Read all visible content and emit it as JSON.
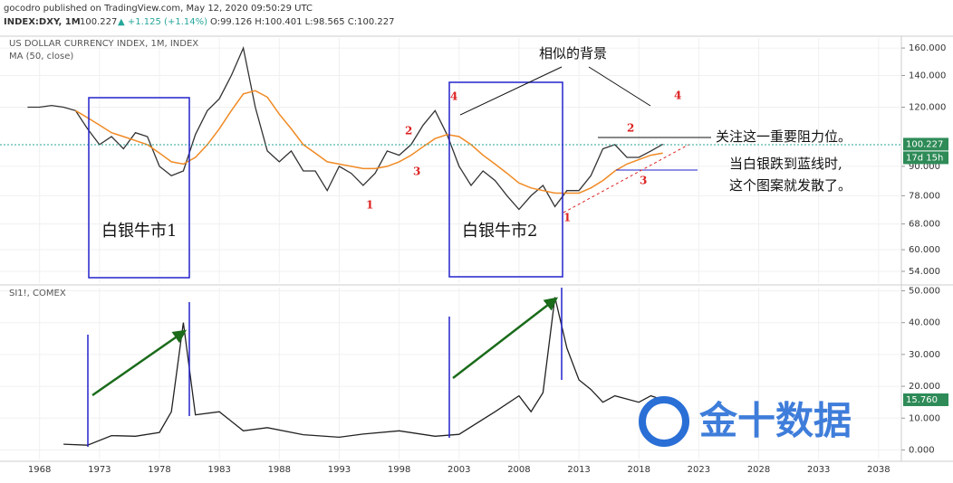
{
  "header": {
    "publisher": "gocodro published on TradingView.com, May 12, 2020 09:50:29 UTC",
    "symbol": "INDEX:DXY, 1M",
    "last": "100.227",
    "change": "▲ +1.125 (+1.14%)",
    "ohlc": "O:99.126 H:100.401 L:98.565 C:100.227"
  },
  "annotations": {
    "similar": "相似的背景",
    "resistance": "关注这一重要阻力位。",
    "note1": "当白银跌到蓝线时,",
    "note2": "这个图案就发散了。",
    "bull1": "白银牛市1",
    "bull2": "白银牛市2",
    "countdown": "17d 15h",
    "waves": [
      "1",
      "2",
      "3",
      "4",
      "1",
      "2",
      "3",
      "4"
    ],
    "watermark": "金十数据"
  },
  "chart_data": [
    {
      "type": "line",
      "log_scale": true,
      "grid": true,
      "last_label": "100.227",
      "x": [
        1967,
        1968,
        1969,
        1970,
        1971,
        1972,
        1973,
        1974,
        1975,
        1976,
        1977,
        1978,
        1979,
        1980,
        1981,
        1982,
        1983,
        1984,
        1985,
        1986,
        1987,
        1988,
        1989,
        1990,
        1991,
        1992,
        1993,
        1994,
        1995,
        1996,
        1997,
        1998,
        1999,
        2000,
        2001,
        2002,
        2003,
        2004,
        2005,
        2006,
        2007,
        2008,
        2009,
        2010,
        2011,
        2012,
        2013,
        2014,
        2015,
        2016,
        2017,
        2018,
        2019,
        2020
      ],
      "series": [
        {
          "name": "US DOLLAR CURRENCY INDEX, 1M, INDEX",
          "color": "#333333",
          "values": [
            120,
            120,
            121,
            120,
            118,
            108,
            100,
            104,
            98,
            106,
            104,
            90,
            86,
            88,
            105,
            118,
            125,
            140,
            160,
            120,
            97,
            92,
            97,
            88,
            88,
            80,
            90,
            87,
            82,
            87,
            97,
            95,
            100,
            110,
            118,
            105,
            90,
            82,
            88,
            84,
            78,
            73,
            78,
            82,
            74,
            80,
            80,
            86,
            98,
            100,
            94,
            94,
            97,
            100.227
          ]
        },
        {
          "name": "MA (50, close)",
          "color": "#f08a24",
          "values": [
            null,
            null,
            null,
            null,
            118,
            114,
            110,
            106,
            104,
            102,
            100,
            96,
            92,
            91,
            94,
            100,
            108,
            118,
            128,
            130,
            126,
            116,
            108,
            100,
            96,
            92,
            91,
            90,
            89,
            89,
            90,
            92,
            95,
            99,
            103,
            105,
            104,
            100,
            95,
            91,
            87,
            83,
            81,
            80,
            79,
            79,
            79,
            81,
            84,
            88,
            91,
            93,
            95,
            96
          ]
        }
      ],
      "xlim": [
        1964.7,
        2039.9
      ],
      "xticks": [
        1968,
        1973,
        1978,
        1983,
        1988,
        1993,
        1998,
        2003,
        2008,
        2013,
        2018,
        2023,
        2028,
        2033,
        2038
      ],
      "ylim": [
        51,
        168
      ],
      "yticks": [
        {
          "value": 54,
          "label": "54.000"
        },
        {
          "value": 60,
          "label": "60.000"
        },
        {
          "value": 68,
          "label": "68.000"
        },
        {
          "value": 78,
          "label": "78.000"
        },
        {
          "value": 90,
          "label": "90.000"
        },
        {
          "value": 120,
          "label": "120.000"
        },
        {
          "value": 140,
          "label": "140.000"
        },
        {
          "value": 160,
          "label": "160.000"
        }
      ]
    },
    {
      "type": "line",
      "log_scale": false,
      "grid": true,
      "last_label": "15.760",
      "x": [
        1970,
        1972,
        1974,
        1976,
        1978,
        1979,
        1980,
        1981,
        1983,
        1985,
        1987,
        1990,
        1993,
        1995,
        1998,
        2001,
        2003,
        2006,
        2008,
        2009,
        2010,
        2011,
        2012,
        2013,
        2014,
        2015,
        2016,
        2018,
        2019,
        2020
      ],
      "series": [
        {
          "name": "SI1!, COMEX",
          "color": "#222222",
          "values": [
            1.8,
            1.5,
            4.5,
            4.3,
            5.5,
            12,
            40,
            11,
            12,
            6,
            7,
            4.8,
            4,
            5,
            6,
            4.3,
            4.9,
            12,
            17,
            12,
            18,
            48,
            32,
            22,
            19,
            15,
            17,
            15,
            17,
            15.76
          ]
        }
      ],
      "xlim": [
        1964.7,
        2039.9
      ],
      "xticks": [
        1968,
        1973,
        1978,
        1983,
        1988,
        1993,
        1998,
        2003,
        2008,
        2013,
        2018,
        2023,
        2028,
        2033,
        2038
      ],
      "ylim": [
        -3,
        51
      ],
      "yticks": [
        {
          "value": 0,
          "label": "0.000"
        },
        {
          "value": 10,
          "label": "10.000"
        },
        {
          "value": 20,
          "label": "20.000"
        },
        {
          "value": 30,
          "label": "30.000"
        },
        {
          "value": 40,
          "label": "40.000"
        },
        {
          "value": 50,
          "label": "50.000"
        }
      ]
    }
  ]
}
